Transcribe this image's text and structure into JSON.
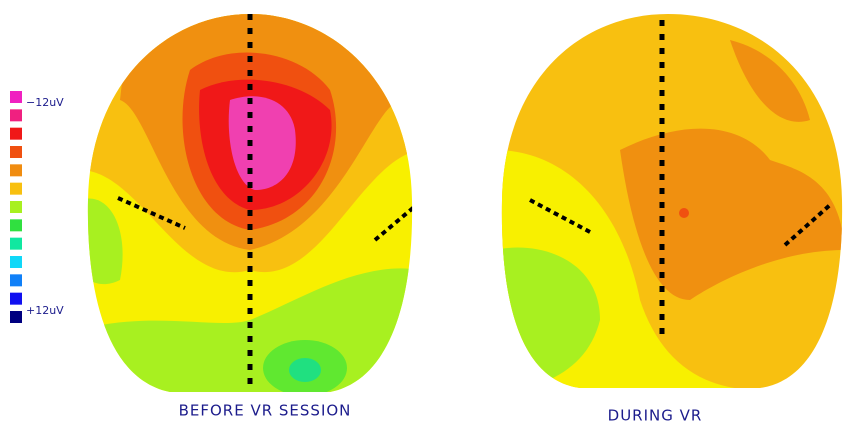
{
  "legend": {
    "top_label": "−12uV",
    "bottom_label": "+12uV",
    "colors": [
      "#f020c0",
      "#f02080",
      "#f01818",
      "#f05010",
      "#f08c10",
      "#f8c010",
      "#a8f020",
      "#30e040",
      "#10e8a0",
      "#10d8f8",
      "#1080f8",
      "#1010f0",
      "#000080"
    ]
  },
  "panels": [
    {
      "caption": "BEFORE VR SESSION"
    },
    {
      "caption": "DURING VR"
    }
  ]
}
